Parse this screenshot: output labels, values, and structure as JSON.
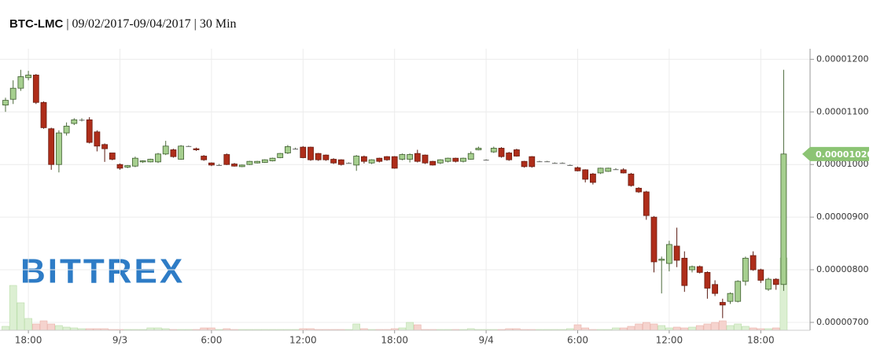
{
  "chart_data": {
    "type": "candlestick",
    "title_parts": [
      "BTC-LMC",
      "| 09/02/2017-09/04/2017 | 30 Min"
    ],
    "watermark": "BITTREX",
    "categories": [
      null,
      null,
      null,
      "18:00",
      null,
      null,
      null,
      null,
      null,
      null,
      null,
      null,
      null,
      null,
      null,
      "9/3",
      null,
      null,
      null,
      null,
      null,
      null,
      null,
      null,
      null,
      null,
      null,
      "6:00",
      null,
      null,
      null,
      null,
      null,
      null,
      null,
      null,
      null,
      null,
      null,
      "12:00",
      null,
      null,
      null,
      null,
      null,
      null,
      null,
      null,
      null,
      null,
      null,
      "18:00",
      null,
      null,
      null,
      null,
      null,
      null,
      null,
      null,
      null,
      null,
      null,
      "9/4",
      null,
      null,
      null,
      null,
      null,
      null,
      null,
      null,
      null,
      null,
      null,
      "6:00",
      null,
      null,
      null,
      null,
      null,
      null,
      null,
      null,
      null,
      null,
      null,
      "12:00",
      null,
      null,
      null,
      null,
      null,
      null,
      null,
      null,
      null,
      null,
      null,
      "18:00",
      null,
      null,
      null
    ],
    "open": [
      1.113e-05,
      1.124e-05,
      1.145e-05,
      1.165e-05,
      1.17e-05,
      1.118e-05,
      1.068e-05,
      1e-05,
      1.06e-05,
      1.078e-05,
      1.085e-05,
      1.085e-05,
      1.062e-05,
      1.038e-05,
      1.022e-05,
      1e-05,
      9.95e-06,
      9.97e-06,
      1.005e-05,
      1.005e-05,
      1.005e-05,
      1.02e-05,
      1.028e-05,
      1.01e-05,
      1.035e-05,
      1.03e-05,
      1.016e-05,
      1.003e-05,
      9.99e-06,
      1.019e-05,
      1.001e-05,
      9.96e-06,
      1e-05,
      1.003e-05,
      1.004e-05,
      1.007e-05,
      1.013e-05,
      1.022e-05,
      1.03e-05,
      1.033e-05,
      1.033e-05,
      1.021e-05,
      1.018e-05,
      1.01e-05,
      1.009e-05,
      1.003e-05,
      9.99e-06,
      1.015e-05,
      1.003e-05,
      1.012e-05,
      1.015e-05,
      1.015e-05,
      1.01e-05,
      1.01e-05,
      1.021e-05,
      1.018e-05,
      1.006e-05,
      1.003e-05,
      1.006e-05,
      1.012e-05,
      1.006e-05,
      1.01e-05,
      1.028e-05,
      1.009e-05,
      1.024e-05,
      1.031e-05,
      1.022e-05,
      1.028e-05,
      1.006e-05,
      1.015e-05,
      1.006e-05,
      1.006e-05,
      1.003e-05,
      1.003e-05,
      9.99e-06,
      9.94e-06,
      9.9e-06,
      9.82e-06,
      9.84e-06,
      9.87e-06,
      9.91e-06,
      9.9e-06,
      9.82e-06,
      9.55e-06,
      9.48e-06,
      9e-06,
      8.18e-06,
      8.12e-06,
      8.45e-06,
      8.22e-06,
      8e-06,
      8.06e-06,
      7.95e-06,
      7.72e-06,
      7.38e-06,
      7.4e-06,
      7.4e-06,
      7.78e-06,
      8.27e-06,
      8e-06,
      7.63e-06,
      7.82e-06,
      7.72e-06
    ],
    "high": [
      1.127e-05,
      1.16e-05,
      1.18e-05,
      1.178e-05,
      1.172e-05,
      1.12e-05,
      1.07e-05,
      1.065e-05,
      1.08e-05,
      1.088e-05,
      1.088e-05,
      1.09e-05,
      1.065e-05,
      1.04e-05,
      1.022e-05,
      1.002e-05,
      9.99e-06,
      1.015e-05,
      1.008e-05,
      1.011e-05,
      1.022e-05,
      1.045e-05,
      1.03e-05,
      1.037e-05,
      1.036e-05,
      1.032e-05,
      1.018e-05,
      1.004e-05,
      1.001e-05,
      1.021e-05,
      1.003e-05,
      1e-05,
      1.007e-05,
      1.007e-05,
      1.01e-05,
      1.013e-05,
      1.022e-05,
      1.037e-05,
      1.032e-05,
      1.035e-05,
      1.034e-05,
      1.022e-05,
      1.019e-05,
      1.012e-05,
      1.01e-05,
      1.004e-05,
      1.018e-05,
      1.017e-05,
      1.01e-05,
      1.013e-05,
      1.016e-05,
      1.016e-05,
      1.021e-05,
      1.021e-05,
      1.028e-05,
      1.019e-05,
      1.007e-05,
      1.01e-05,
      1.013e-05,
      1.013e-05,
      1.013e-05,
      1.025e-05,
      1.034e-05,
      1.01e-05,
      1.034e-05,
      1.033e-05,
      1.024e-05,
      1.03e-05,
      1.007e-05,
      1.016e-05,
      1.007e-05,
      1.007e-05,
      1.004e-05,
      1.004e-05,
      1e-05,
      9.96e-06,
      9.91e-06,
      9.84e-06,
      9.94e-06,
      9.94e-06,
      9.93e-06,
      9.93e-06,
      9.84e-06,
      9.57e-06,
      9.5e-06,
      9.02e-06,
      8.25e-06,
      8.55e-06,
      8.8e-06,
      8.35e-06,
      8.08e-06,
      8.08e-06,
      7.97e-06,
      7.8e-06,
      7.45e-06,
      7.57e-06,
      7.8e-06,
      8.25e-06,
      8.35e-06,
      8.02e-06,
      7.85e-06,
      7.84e-06,
      1.18e-05
    ],
    "low": [
      1.1e-05,
      1.115e-05,
      1.14e-05,
      1.16e-05,
      1.115e-05,
      1.068e-05,
      9.9e-06,
      9.85e-06,
      1.055e-05,
      1.075e-05,
      1.082e-05,
      1.04e-05,
      1.025e-05,
      1.005e-05,
      1.008e-05,
      9.9e-06,
      9.93e-06,
      9.95e-06,
      1.003e-05,
      1.004e-05,
      1.003e-05,
      1.018e-05,
      1.013e-05,
      1.009e-05,
      1.034e-05,
      1.026e-05,
      1.007e-05,
      9.97e-06,
      9.98e-06,
      9.99e-06,
      9.96e-06,
      9.95e-06,
      9.99e-06,
      1.002e-05,
      1.003e-05,
      1.006e-05,
      1.012e-05,
      1.02e-05,
      1.029e-05,
      1.012e-05,
      1.007e-05,
      1.007e-05,
      1.007e-05,
      1.001e-05,
      9.98e-06,
      1.002e-05,
      9.88e-06,
      1.002e-05,
      1.001e-05,
      1.004e-05,
      1.007e-05,
      9.92e-06,
      1.008e-05,
      1.004e-05,
      1.004e-05,
      1.001e-05,
      9.98e-06,
      1.001e-05,
      1.004e-05,
      1.004e-05,
      1.004e-05,
      1.009e-05,
      1.027e-05,
      1.008e-05,
      1.022e-05,
      1.013e-05,
      1.007e-05,
      1.015e-05,
      9.94e-06,
      9.94e-06,
      1.005e-05,
      1.005e-05,
      1.002e-05,
      1.002e-05,
      9.98e-06,
      9.87e-06,
      9.66e-06,
      9.62e-06,
      9.82e-06,
      9.86e-06,
      9.9e-06,
      9.83e-06,
      9.58e-06,
      9.46e-06,
      8.95e-06,
      7.95e-06,
      7.55e-06,
      7.97e-06,
      8.05e-06,
      7.58e-06,
      7.95e-06,
      7.93e-06,
      7.45e-06,
      7.5e-06,
      7.08e-06,
      7.35e-06,
      7.38e-06,
      7.7e-06,
      7.98e-06,
      7.75e-06,
      7.6e-06,
      7.62e-06,
      7.6e-06
    ],
    "close": [
      1.122e-05,
      1.145e-05,
      1.167e-05,
      1.17e-05,
      1.118e-05,
      1.07e-05,
      1e-05,
      1.06e-05,
      1.073e-05,
      1.085e-05,
      1.085e-05,
      1.042e-05,
      1.035e-05,
      1.03e-05,
      1.01e-05,
      9.93e-06,
      9.98e-06,
      1.012e-05,
      1.007e-05,
      1.01e-05,
      1.02e-05,
      1.035e-05,
      1.015e-05,
      1.035e-05,
      1.035e-05,
      1.028e-05,
      1.009e-05,
      9.99e-06,
      9.99e-06,
      1e-05,
      9.97e-06,
      9.99e-06,
      1.006e-05,
      1.006e-05,
      1.009e-05,
      1.012e-05,
      1.021e-05,
      1.034e-05,
      1.03e-05,
      1.013e-05,
      1.009e-05,
      1.009e-05,
      1.009e-05,
      1.003e-05,
      1e-05,
      1.003e-05,
      1.016e-05,
      1.006e-05,
      1.009e-05,
      1.006e-05,
      1.009e-05,
      9.93e-06,
      1.019e-05,
      1.019e-05,
      1.006e-05,
      1.003e-05,
      9.99e-06,
      1.009e-05,
      1.012e-05,
      1.006e-05,
      1.012e-05,
      1.021e-05,
      1.031e-05,
      1.009e-05,
      1.031e-05,
      1.015e-05,
      1.009e-05,
      1.016e-05,
      9.96e-06,
      9.96e-06,
      1.006e-05,
      1.006e-05,
      1.003e-05,
      1.003e-05,
      9.99e-06,
      9.88e-06,
      9.72e-06,
      9.66e-06,
      9.93e-06,
      9.93e-06,
      9.91e-06,
      9.84e-06,
      9.6e-06,
      9.48e-06,
      9.03e-06,
      8.15e-06,
      8.2e-06,
      8.48e-06,
      8.18e-06,
      7.7e-06,
      8.06e-06,
      7.95e-06,
      7.65e-06,
      7.55e-06,
      7.33e-06,
      7.55e-06,
      7.78e-06,
      8.22e-06,
      8e-06,
      7.8e-06,
      7.82e-06,
      7.72e-06,
      1.02e-05
    ],
    "volume": [
      5,
      57,
      35,
      15,
      8,
      12,
      8,
      6,
      4,
      3,
      2,
      2,
      2,
      2,
      1,
      1,
      1,
      1,
      1,
      3,
      3,
      2,
      1,
      1,
      1,
      1,
      3,
      3,
      1,
      2,
      1,
      1,
      1,
      1,
      1,
      1,
      1,
      1,
      1,
      2,
      2,
      1,
      1,
      1,
      1,
      1,
      8,
      2,
      1,
      1,
      1,
      2,
      3,
      10,
      7,
      1,
      1,
      1,
      1,
      1,
      1,
      2,
      1,
      1,
      1,
      1,
      2,
      2,
      1,
      1,
      1,
      1,
      1,
      1,
      2,
      7,
      3,
      1,
      1,
      1,
      3,
      3,
      5,
      8,
      10,
      8,
      6,
      3,
      4,
      3,
      4,
      6,
      8,
      10,
      12,
      6,
      8,
      5,
      3,
      2,
      2,
      3,
      92
    ],
    "volume_lim": [
      0,
      100
    ],
    "up_color": "#a6cf8f",
    "down_color": "#ae2d1a",
    "ylim": [
      6.85e-06,
      1.22e-05
    ],
    "yticks": [
      {
        "value": 7e-06,
        "label": "0.00000700"
      },
      {
        "value": 8e-06,
        "label": "0.00000800"
      },
      {
        "value": 9e-06,
        "label": "0.00000900"
      },
      {
        "value": 1e-05,
        "label": "0.00001000"
      },
      {
        "value": 1.1e-05,
        "label": "0.00001100"
      },
      {
        "value": 1.2e-05,
        "label": "0.00001200"
      }
    ],
    "last_price": {
      "value": 1.02e-05,
      "label": "0.00001020"
    },
    "grid": true
  }
}
